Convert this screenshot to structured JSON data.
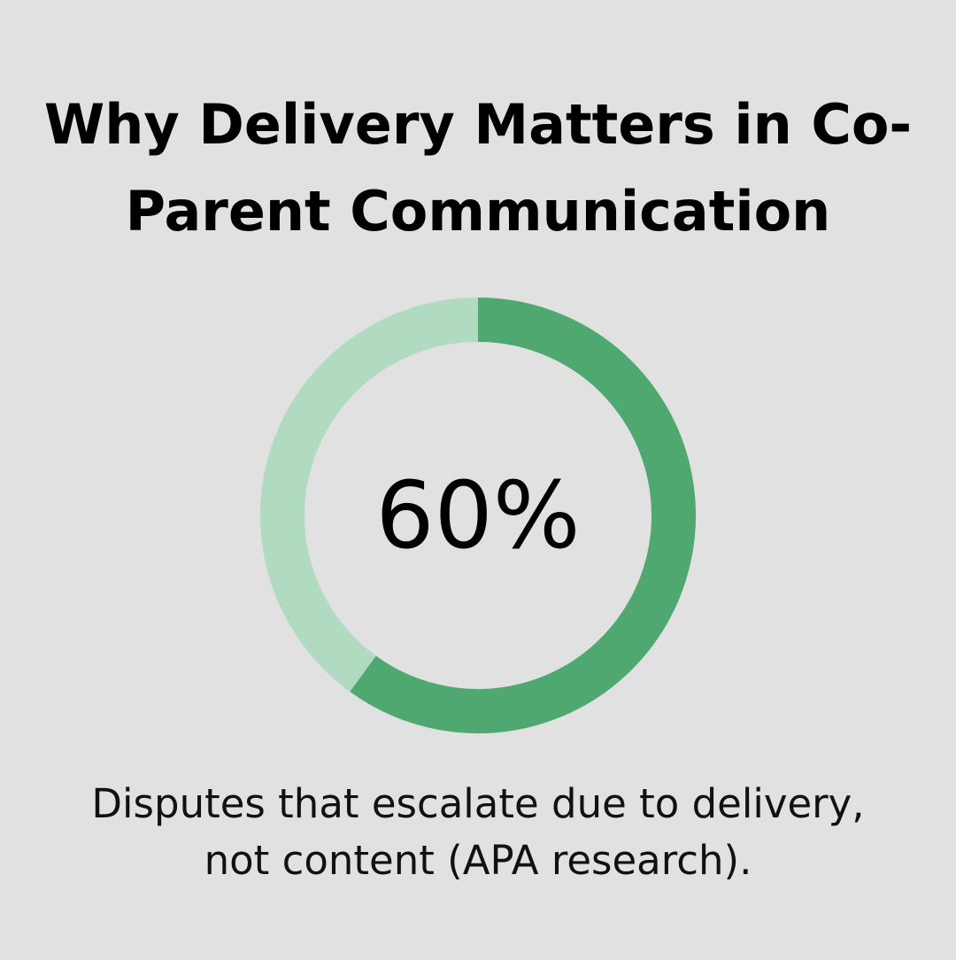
{
  "title": "Why Delivery Matters in Co-Parent Communication",
  "caption": "Disputes that escalate due to delivery, not content (APA research).",
  "chart_data": {
    "type": "pie",
    "variant": "donut",
    "center_label": "60%",
    "value": 60,
    "max": 100,
    "colors": {
      "filled": "#4ea86f",
      "remainder": "#b0dbc0",
      "background": "#e0e1e0"
    }
  }
}
